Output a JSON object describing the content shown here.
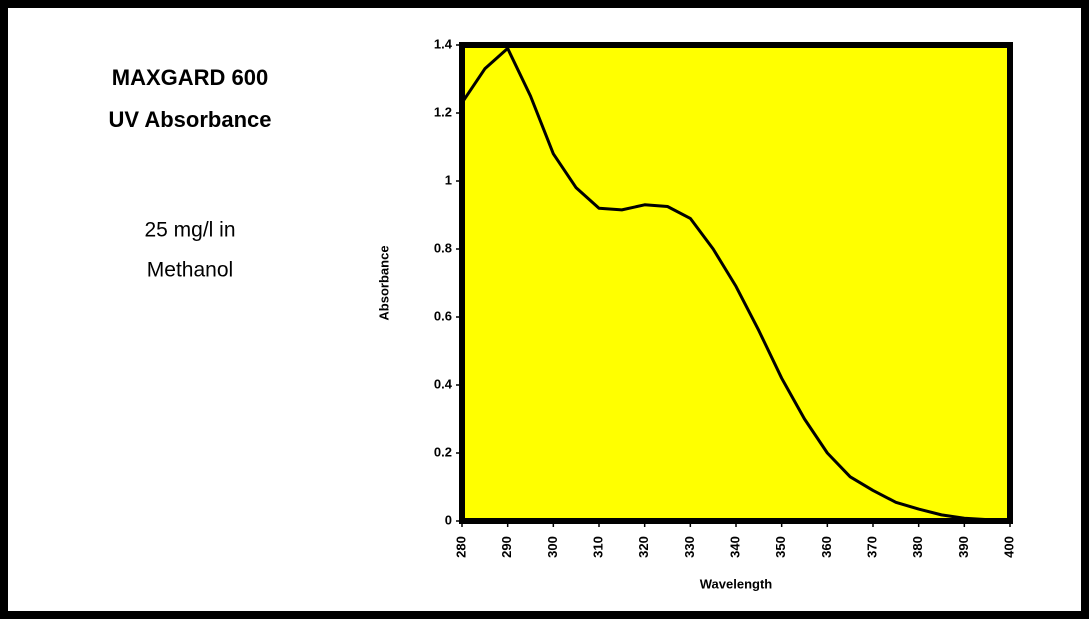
{
  "chart_data": {
    "type": "line",
    "annotations": [
      "MAXGARD 600",
      "UV Absorbance",
      "25 mg/l in",
      "Methanol"
    ],
    "x_label": "Wavelength",
    "y_label": "Absorbance",
    "x": [
      280,
      285,
      290,
      295,
      300,
      305,
      310,
      315,
      320,
      325,
      330,
      335,
      340,
      345,
      350,
      355,
      360,
      365,
      370,
      375,
      380,
      385,
      390,
      395,
      400
    ],
    "series": [
      {
        "name": "Absorbance",
        "color": "#000000",
        "values": [
          1.23,
          1.33,
          1.39,
          1.25,
          1.08,
          0.98,
          0.92,
          0.915,
          0.93,
          0.925,
          0.89,
          0.8,
          0.69,
          0.56,
          0.42,
          0.3,
          0.2,
          0.13,
          0.09,
          0.055,
          0.035,
          0.018,
          0.008,
          0.004,
          0.003
        ]
      }
    ],
    "xlim": [
      280,
      400
    ],
    "xticks": [
      280,
      290,
      300,
      310,
      320,
      330,
      340,
      350,
      360,
      370,
      380,
      390,
      400
    ],
    "ylim": [
      0,
      1.4
    ],
    "yticks": [
      0,
      0.2,
      0.4,
      0.6,
      0.8,
      1,
      1.2,
      1.4
    ],
    "plot_color": "#ffff00",
    "grid": false
  }
}
